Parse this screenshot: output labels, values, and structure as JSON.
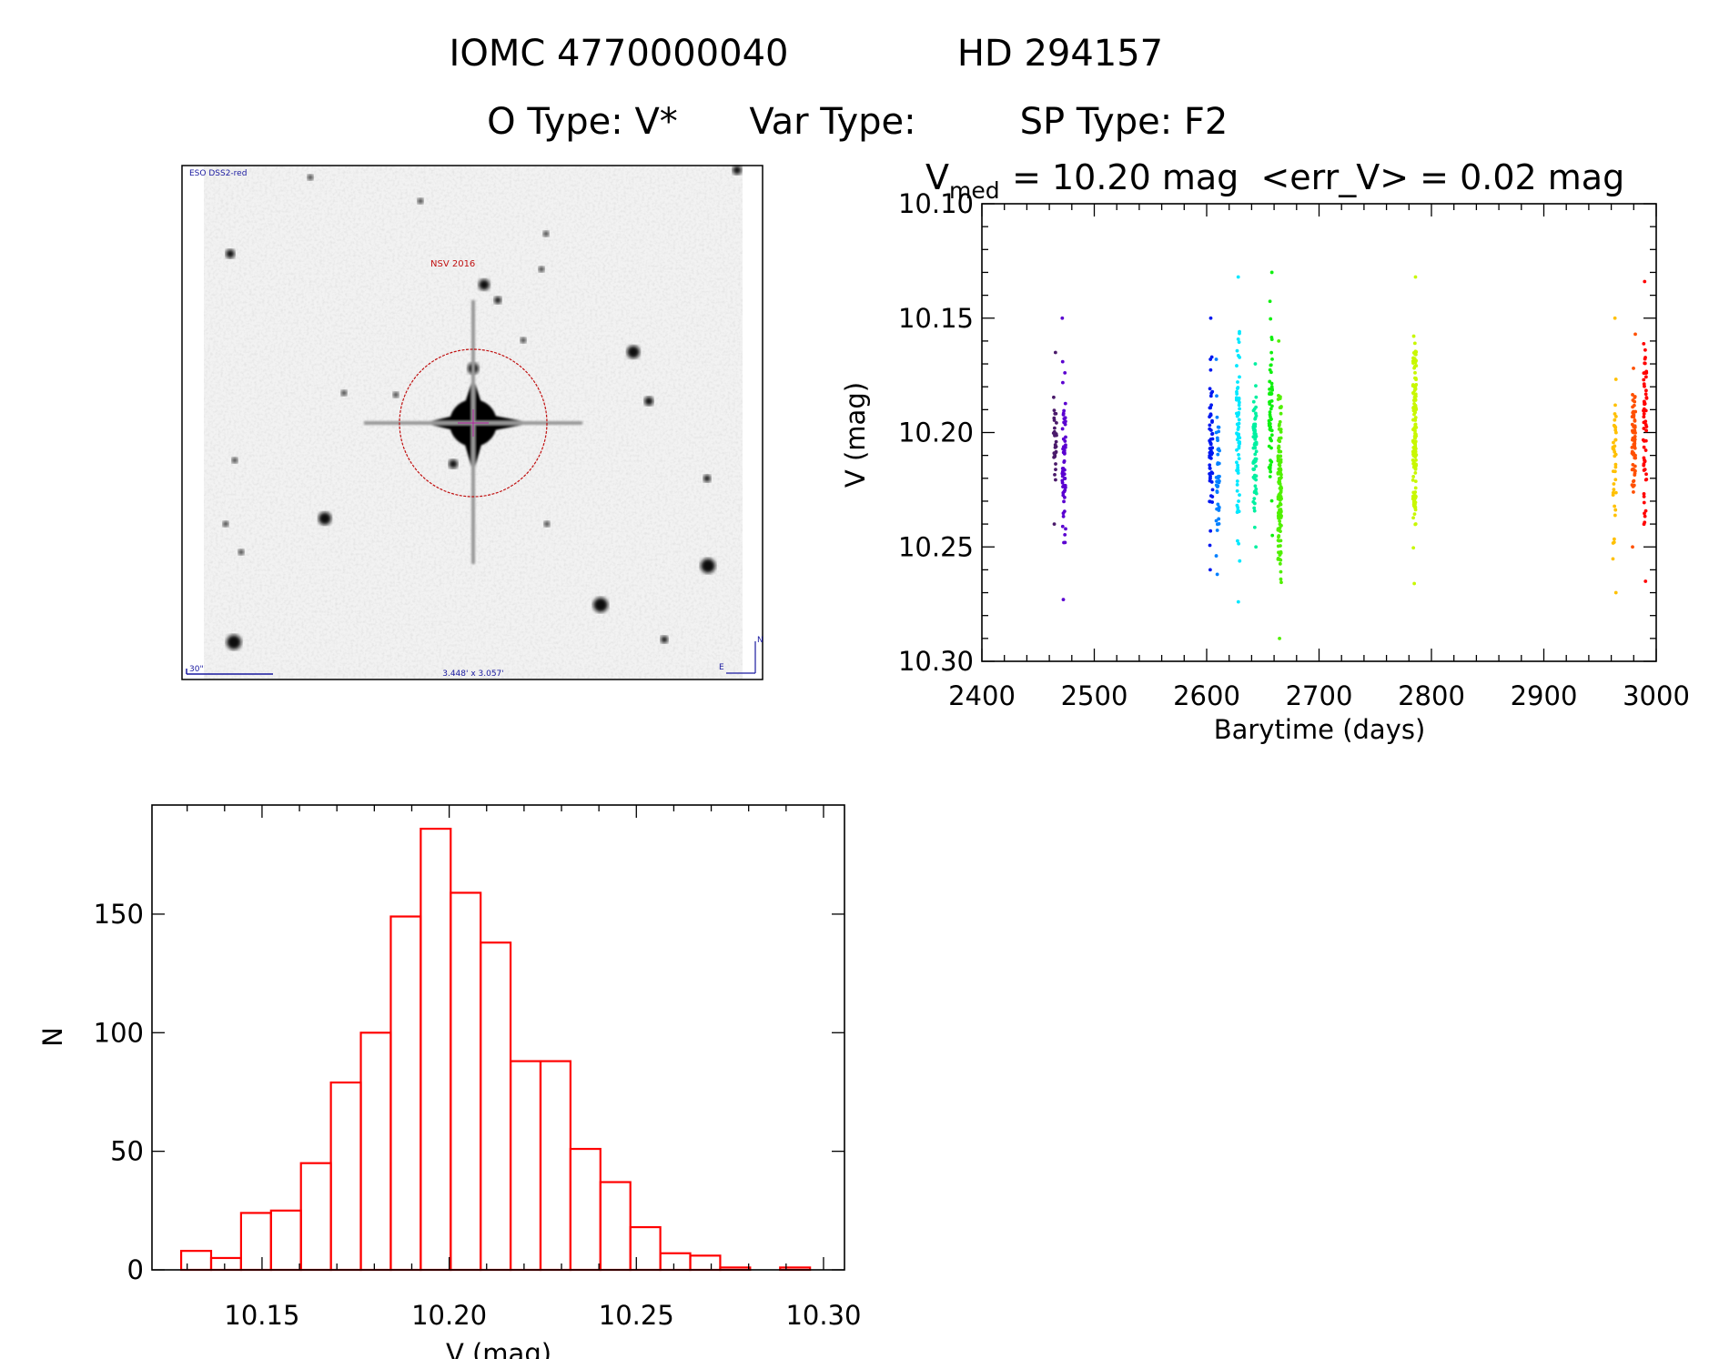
{
  "header": {
    "line1_id": "IOMC 4770000040",
    "line1_name": "HD 294157",
    "otype": "O Type: V*",
    "vartype": "Var Type:",
    "sptype": "SP Type: F2"
  },
  "finder": {
    "survey_label": "ESO DSS2-red",
    "object_label": "NSV 2016",
    "scale_label": "30\"",
    "fov_label": "3.448' x 3.057'",
    "north_label": "N",
    "east_label": "E"
  },
  "chart_data": [
    {
      "type": "scatter",
      "title_prefix": "V",
      "title_sub": "med",
      "title_rest": " = 10.20 mag  <err_V> = 0.02 mag",
      "xlabel": "Barytime (days)",
      "ylabel": "V (mag)",
      "xlim": [
        2400,
        3000
      ],
      "ylim": [
        10.3,
        10.1
      ],
      "xticks": [
        "2400",
        "2500",
        "2600",
        "2700",
        "2800",
        "2900",
        "3000"
      ],
      "yticks": [
        "10.10",
        "10.15",
        "10.20",
        "10.25",
        "10.30"
      ],
      "series": [
        {
          "name": "g1",
          "x": 2465,
          "n": 30,
          "ymin": 10.165,
          "ymax": 10.24,
          "color": "#4a1a6a"
        },
        {
          "name": "g2",
          "x": 2473,
          "n": 60,
          "ymin": 10.15,
          "ymax": 10.273,
          "color": "#5a00d0"
        },
        {
          "name": "g3",
          "x": 2604,
          "n": 60,
          "ymin": 10.15,
          "ymax": 10.26,
          "color": "#0018f0"
        },
        {
          "name": "g4",
          "x": 2610,
          "n": 40,
          "ymin": 10.168,
          "ymax": 10.262,
          "color": "#0080ff"
        },
        {
          "name": "g5",
          "x": 2628,
          "n": 70,
          "ymin": 10.132,
          "ymax": 10.274,
          "color": "#00e8ff"
        },
        {
          "name": "g6",
          "x": 2643,
          "n": 70,
          "ymin": 10.17,
          "ymax": 10.25,
          "color": "#00f0a0"
        },
        {
          "name": "g7",
          "x": 2657,
          "n": 60,
          "ymin": 10.13,
          "ymax": 10.245,
          "color": "#10f010"
        },
        {
          "name": "g8",
          "x": 2665,
          "n": 120,
          "ymin": 10.16,
          "ymax": 10.29,
          "color": "#50f000"
        },
        {
          "name": "g9",
          "x": 2785,
          "n": 150,
          "ymin": 10.132,
          "ymax": 10.266,
          "color": "#c8f800"
        },
        {
          "name": "g10",
          "x": 2963,
          "n": 40,
          "ymin": 10.15,
          "ymax": 10.27,
          "color": "#ffc000"
        },
        {
          "name": "g11",
          "x": 2980,
          "n": 70,
          "ymin": 10.157,
          "ymax": 10.25,
          "color": "#ff5000"
        },
        {
          "name": "g12",
          "x": 2990,
          "n": 60,
          "ymin": 10.134,
          "ymax": 10.265,
          "color": "#ff0000"
        }
      ]
    },
    {
      "type": "bar",
      "xlabel": "V (mag)",
      "ylabel": "N",
      "xlim": [
        10.1206,
        10.3056
      ],
      "ylim": [
        0,
        196
      ],
      "xticks": [
        "10.15",
        "10.20",
        "10.25",
        "10.30"
      ],
      "yticks": [
        "0",
        "50",
        "100",
        "150"
      ],
      "bin_start": 10.1284,
      "bin_width": 0.008,
      "values": [
        8,
        5,
        24,
        25,
        45,
        79,
        100,
        149,
        186,
        159,
        138,
        88,
        88,
        51,
        37,
        18,
        7,
        6,
        1,
        0,
        1
      ],
      "color": "#ff0000"
    }
  ]
}
